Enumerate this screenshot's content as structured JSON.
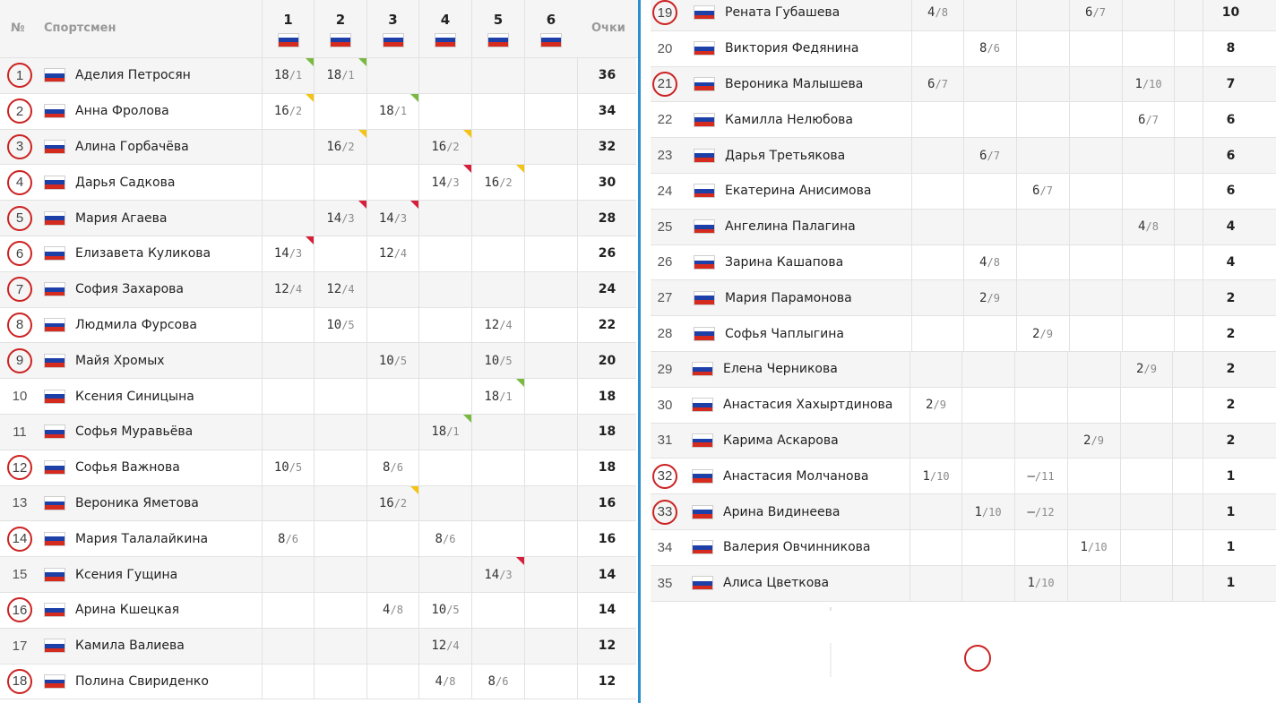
{
  "header": {
    "rank_label": "№",
    "athlete_label": "Спортсмен",
    "stages": [
      "1",
      "2",
      "3",
      "4",
      "5",
      "6"
    ],
    "points_label": "Очки"
  },
  "colors": {
    "divider": "#2a8fd0",
    "circle": "#cc2222",
    "corner_green": "#79b93f",
    "corner_yellow": "#f3c315",
    "corner_red": "#d6203b"
  },
  "flag_icon": "russia-flag-icon",
  "rows": [
    {
      "rank": "1",
      "circled": true,
      "name": "Аделия Петросян",
      "results": [
        {
          "s": 0,
          "v": "18",
          "p": "/1",
          "mark": "green"
        },
        {
          "s": 1,
          "v": "18",
          "p": "/1",
          "mark": "green"
        }
      ],
      "points": "36"
    },
    {
      "rank": "2",
      "circled": true,
      "name": "Анна Фролова",
      "results": [
        {
          "s": 0,
          "v": "16",
          "p": "/2",
          "mark": "yellow"
        },
        {
          "s": 2,
          "v": "18",
          "p": "/1",
          "mark": "green"
        }
      ],
      "points": "34"
    },
    {
      "rank": "3",
      "circled": true,
      "name": "Алина Горбачёва",
      "results": [
        {
          "s": 1,
          "v": "16",
          "p": "/2",
          "mark": "yellow"
        },
        {
          "s": 3,
          "v": "16",
          "p": "/2",
          "mark": "yellow"
        }
      ],
      "points": "32"
    },
    {
      "rank": "4",
      "circled": true,
      "name": "Дарья Садкова",
      "results": [
        {
          "s": 3,
          "v": "14",
          "p": "/3",
          "mark": "red"
        },
        {
          "s": 4,
          "v": "16",
          "p": "/2",
          "mark": "yellow"
        }
      ],
      "points": "30"
    },
    {
      "rank": "5",
      "circled": true,
      "name": "Мария Агаева",
      "results": [
        {
          "s": 1,
          "v": "14",
          "p": "/3",
          "mark": "red"
        },
        {
          "s": 2,
          "v": "14",
          "p": "/3",
          "mark": "red"
        }
      ],
      "points": "28"
    },
    {
      "rank": "6",
      "circled": true,
      "name": "Елизавета Куликова",
      "results": [
        {
          "s": 0,
          "v": "14",
          "p": "/3",
          "mark": "red"
        },
        {
          "s": 2,
          "v": "12",
          "p": "/4"
        }
      ],
      "points": "26"
    },
    {
      "rank": "7",
      "circled": true,
      "name": "София Захарова",
      "results": [
        {
          "s": 0,
          "v": "12",
          "p": "/4"
        },
        {
          "s": 1,
          "v": "12",
          "p": "/4"
        }
      ],
      "points": "24"
    },
    {
      "rank": "8",
      "circled": true,
      "name": "Людмила Фурсова",
      "results": [
        {
          "s": 1,
          "v": "10",
          "p": "/5"
        },
        {
          "s": 4,
          "v": "12",
          "p": "/4"
        }
      ],
      "points": "22"
    },
    {
      "rank": "9",
      "circled": true,
      "name": "Майя Хромых",
      "results": [
        {
          "s": 2,
          "v": "10",
          "p": "/5"
        },
        {
          "s": 4,
          "v": "10",
          "p": "/5"
        }
      ],
      "points": "20"
    },
    {
      "rank": "10",
      "circled": false,
      "name": "Ксения Синицына",
      "results": [
        {
          "s": 4,
          "v": "18",
          "p": "/1",
          "mark": "green"
        }
      ],
      "points": "18"
    },
    {
      "rank": "11",
      "circled": false,
      "name": "Софья Муравьёва",
      "results": [
        {
          "s": 3,
          "v": "18",
          "p": "/1",
          "mark": "green"
        }
      ],
      "points": "18"
    },
    {
      "rank": "12",
      "circled": true,
      "name": "Софья Важнова",
      "results": [
        {
          "s": 0,
          "v": "10",
          "p": "/5"
        },
        {
          "s": 2,
          "v": "8",
          "p": "/6"
        }
      ],
      "points": "18"
    },
    {
      "rank": "13",
      "circled": false,
      "name": "Вероника Яметова",
      "results": [
        {
          "s": 2,
          "v": "16",
          "p": "/2",
          "mark": "yellow"
        }
      ],
      "points": "16"
    },
    {
      "rank": "14",
      "circled": true,
      "name": "Мария Талалайкина",
      "results": [
        {
          "s": 0,
          "v": "8",
          "p": "/6"
        },
        {
          "s": 3,
          "v": "8",
          "p": "/6"
        }
      ],
      "points": "16"
    },
    {
      "rank": "15",
      "circled": false,
      "name": "Ксения Гущина",
      "results": [
        {
          "s": 4,
          "v": "14",
          "p": "/3",
          "mark": "red"
        }
      ],
      "points": "14"
    },
    {
      "rank": "16",
      "circled": true,
      "name": "Арина Кшецкая",
      "results": [
        {
          "s": 2,
          "v": "4",
          "p": "/8"
        },
        {
          "s": 3,
          "v": "10",
          "p": "/5"
        }
      ],
      "points": "14"
    },
    {
      "rank": "17",
      "circled": false,
      "name": "Камила Валиева",
      "results": [
        {
          "s": 3,
          "v": "12",
          "p": "/4"
        }
      ],
      "points": "12"
    },
    {
      "rank": "18",
      "circled": true,
      "name": "Полина Свириденко",
      "results": [
        {
          "s": 3,
          "v": "4",
          "p": "/8"
        },
        {
          "s": 4,
          "v": "8",
          "p": "/6"
        }
      ],
      "points": "12"
    },
    {
      "rank": "19",
      "circled": true,
      "name": "Рената Губашева",
      "results": [
        {
          "s": 0,
          "v": "4",
          "p": "/8"
        },
        {
          "s": 3,
          "v": "6",
          "p": "/7"
        }
      ],
      "points": "10"
    },
    {
      "rank": "20",
      "circled": false,
      "name": "Виктория Федянина",
      "results": [
        {
          "s": 1,
          "v": "8",
          "p": "/6"
        }
      ],
      "points": "8"
    },
    {
      "rank": "21",
      "circled": true,
      "name": "Вероника Малышева",
      "results": [
        {
          "s": 0,
          "v": "6",
          "p": "/7"
        },
        {
          "s": 4,
          "v": "1",
          "p": "/10"
        }
      ],
      "points": "7"
    },
    {
      "rank": "22",
      "circled": false,
      "name": "Камилла Нелюбова",
      "results": [
        {
          "s": 4,
          "v": "6",
          "p": "/7"
        }
      ],
      "points": "6"
    },
    {
      "rank": "23",
      "circled": false,
      "name": "Дарья Третьякова",
      "results": [
        {
          "s": 1,
          "v": "6",
          "p": "/7"
        }
      ],
      "points": "6"
    },
    {
      "rank": "24",
      "circled": false,
      "name": "Екатерина Анисимова",
      "results": [
        {
          "s": 2,
          "v": "6",
          "p": "/7"
        }
      ],
      "points": "6"
    },
    {
      "rank": "25",
      "circled": false,
      "name": "Ангелина Палагина",
      "results": [
        {
          "s": 4,
          "v": "4",
          "p": "/8"
        }
      ],
      "points": "4"
    },
    {
      "rank": "26",
      "circled": false,
      "name": "Зарина Кашапова",
      "results": [
        {
          "s": 1,
          "v": "4",
          "p": "/8"
        }
      ],
      "points": "4"
    },
    {
      "rank": "27",
      "circled": false,
      "name": "Мария Парамонова",
      "results": [
        {
          "s": 1,
          "v": "2",
          "p": "/9"
        }
      ],
      "points": "2"
    },
    {
      "rank": "28",
      "circled": false,
      "name": "Софья Чаплыгина",
      "results": [
        {
          "s": 2,
          "v": "2",
          "p": "/9"
        }
      ],
      "points": "2"
    },
    {
      "rank": "29",
      "circled": false,
      "name": "Елена Черникова",
      "results": [
        {
          "s": 4,
          "v": "2",
          "p": "/9"
        }
      ],
      "points": "2"
    },
    {
      "rank": "30",
      "circled": false,
      "name": "Анастасия Хахыртдинова",
      "results": [
        {
          "s": 0,
          "v": "2",
          "p": "/9"
        }
      ],
      "points": "2"
    },
    {
      "rank": "31",
      "circled": false,
      "name": "Карима Аскарова",
      "results": [
        {
          "s": 3,
          "v": "2",
          "p": "/9"
        }
      ],
      "points": "2"
    },
    {
      "rank": "32",
      "circled": true,
      "name": "Анастасия Молчанова",
      "results": [
        {
          "s": 0,
          "v": "1",
          "p": "/10"
        },
        {
          "s": 2,
          "v": "–",
          "p": "/11"
        }
      ],
      "points": "1"
    },
    {
      "rank": "33",
      "circled": true,
      "name": "Арина Видинеева",
      "results": [
        {
          "s": 1,
          "v": "1",
          "p": "/10"
        },
        {
          "s": 2,
          "v": "–",
          "p": "/12"
        }
      ],
      "points": "1"
    },
    {
      "rank": "34",
      "circled": false,
      "name": "Валерия Овчинникова",
      "results": [
        {
          "s": 3,
          "v": "1",
          "p": "/10"
        }
      ],
      "points": "1"
    },
    {
      "rank": "35",
      "circled": false,
      "name": "Алиса Цветкова",
      "results": [
        {
          "s": 2,
          "v": "1",
          "p": "/10"
        }
      ],
      "points": "1"
    }
  ]
}
